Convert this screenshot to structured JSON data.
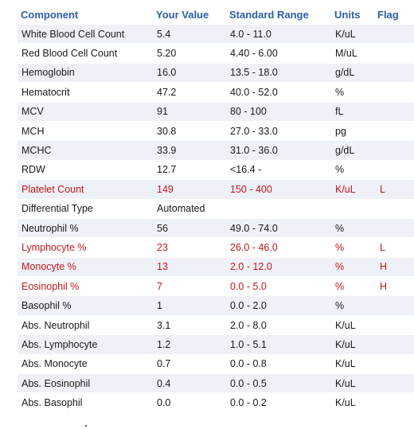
{
  "headers": {
    "component": "Component",
    "value": "Your Value",
    "range": "Standard Range",
    "units": "Units",
    "flag": "Flag"
  },
  "rows": [
    {
      "component": "White Blood Cell Count",
      "value": "5.4",
      "range": "4.0 - 11.0",
      "units": "K/uL",
      "flag": "",
      "flagged": false
    },
    {
      "component": "Red Blood Cell Count",
      "value": "5.20",
      "range": "4.40 - 6.00",
      "units": "M/uL",
      "flag": "",
      "flagged": false
    },
    {
      "component": "Hemoglobin",
      "value": "16.0",
      "range": "13.5 - 18.0",
      "units": "g/dL",
      "flag": "",
      "flagged": false
    },
    {
      "component": "Hematocrit",
      "value": "47.2",
      "range": "40.0 - 52.0",
      "units": "%",
      "flag": "",
      "flagged": false
    },
    {
      "component": "MCV",
      "value": "91",
      "range": "80 - 100",
      "units": "fL",
      "flag": "",
      "flagged": false
    },
    {
      "component": "MCH",
      "value": "30.8",
      "range": "27.0 - 33.0",
      "units": "pg",
      "flag": "",
      "flagged": false
    },
    {
      "component": "MCHC",
      "value": "33.9",
      "range": "31.0 - 36.0",
      "units": "g/dL",
      "flag": "",
      "flagged": false
    },
    {
      "component": "RDW",
      "value": "12.7",
      "range": "<16.4 -",
      "units": "%",
      "flag": "",
      "flagged": false
    },
    {
      "component": "Platelet Count",
      "value": "149",
      "range": "150 - 400",
      "units": "K/uL",
      "flag": "L",
      "flagged": true
    },
    {
      "component": "Differential Type",
      "value": "Automated",
      "range": "",
      "units": "",
      "flag": "",
      "flagged": false
    },
    {
      "component": "Neutrophil %",
      "value": "56",
      "range": "49.0 - 74.0",
      "units": "%",
      "flag": "",
      "flagged": false
    },
    {
      "component": "Lymphocyte %",
      "value": "23",
      "range": "26.0 - 46.0",
      "units": "%",
      "flag": "L",
      "flagged": true
    },
    {
      "component": "Monocyte %",
      "value": "13",
      "range": "2.0 - 12.0",
      "units": "%",
      "flag": "H",
      "flagged": true
    },
    {
      "component": "Eosinophil %",
      "value": "7",
      "range": "0.0 - 5.0",
      "units": "%",
      "flag": "H",
      "flagged": true
    },
    {
      "component": "Basophil %",
      "value": "1",
      "range": "0.0 - 2.0",
      "units": "%",
      "flag": "",
      "flagged": false
    },
    {
      "component": "Abs. Neutrophil",
      "value": "3.1",
      "range": "2.0 - 8.0",
      "units": "K/uL",
      "flag": "",
      "flagged": false
    },
    {
      "component": "Abs. Lymphocyte",
      "value": "1.2",
      "range": "1.0 - 5.1",
      "units": "K/uL",
      "flag": "",
      "flagged": false
    },
    {
      "component": "Abs. Monocyte",
      "value": "0.7",
      "range": "0.0 - 0.8",
      "units": "K/uL",
      "flag": "",
      "flagged": false
    },
    {
      "component": "Abs. Eosinophil",
      "value": "0.4",
      "range": "0.0 - 0.5",
      "units": "K/uL",
      "flag": "",
      "flagged": false
    },
    {
      "component": "Abs. Basophil",
      "value": "0.0",
      "range": "0.0 - 0.2",
      "units": "K/uL",
      "flag": "",
      "flagged": false
    }
  ],
  "colors": {
    "header": "#2b5fa8",
    "stripe": "#eef1f7",
    "flagged": "#c0171b"
  }
}
